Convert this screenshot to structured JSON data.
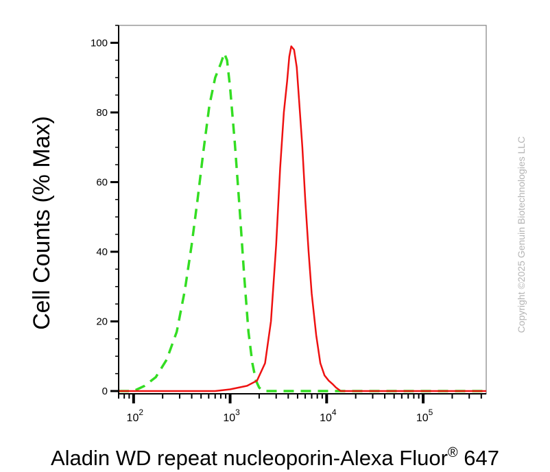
{
  "chart_data": {
    "type": "line",
    "title": "",
    "xlabel": "Aladin WD repeat nucleoporin-Alexa Fluor® 647",
    "xlabel_parts": {
      "main": "Aladin WD repeat nucleoporin-Alexa Fluor",
      "sup": "®",
      "tail": " 647"
    },
    "ylabel": "Cell Counts (% Max)",
    "x_scale": "log",
    "xlim": [
      70,
      450000
    ],
    "ylim": [
      0,
      105
    ],
    "x_ticks": [
      {
        "base": "10",
        "exp": "2",
        "value": 100
      },
      {
        "base": "10",
        "exp": "3",
        "value": 1000
      },
      {
        "base": "10",
        "exp": "4",
        "value": 10000
      },
      {
        "base": "10",
        "exp": "5",
        "value": 100000
      }
    ],
    "y_ticks": [
      {
        "label": "0",
        "value": 0
      },
      {
        "label": "20",
        "value": 20
      },
      {
        "label": "40",
        "value": 40
      },
      {
        "label": "60",
        "value": 60
      },
      {
        "label": "80",
        "value": 80
      },
      {
        "label": "100",
        "value": 100
      }
    ],
    "grid": false,
    "legend": "none",
    "series": [
      {
        "color": "#33dd22",
        "style": "dashed",
        "points": [
          [
            70,
            0
          ],
          [
            100,
            0
          ],
          [
            130,
            1.5
          ],
          [
            170,
            4
          ],
          [
            220,
            9
          ],
          [
            280,
            17
          ],
          [
            340,
            29
          ],
          [
            400,
            42
          ],
          [
            460,
            55
          ],
          [
            530,
            69
          ],
          [
            610,
            82
          ],
          [
            700,
            90
          ],
          [
            800,
            94
          ],
          [
            870,
            97
          ],
          [
            930,
            95
          ],
          [
            1000,
            87
          ],
          [
            1120,
            71
          ],
          [
            1250,
            53
          ],
          [
            1400,
            33
          ],
          [
            1550,
            17
          ],
          [
            1700,
            8
          ],
          [
            1850,
            3
          ],
          [
            2000,
            1
          ],
          [
            2200,
            0
          ],
          [
            450000,
            0
          ]
        ]
      },
      {
        "color": "#ee1111",
        "style": "solid",
        "points": [
          [
            70,
            0
          ],
          [
            700,
            0
          ],
          [
            1000,
            0.5
          ],
          [
            1500,
            1.5
          ],
          [
            1900,
            3
          ],
          [
            2300,
            8
          ],
          [
            2650,
            20
          ],
          [
            3000,
            42
          ],
          [
            3300,
            64
          ],
          [
            3600,
            80
          ],
          [
            3900,
            89
          ],
          [
            4100,
            96
          ],
          [
            4300,
            99
          ],
          [
            4600,
            98
          ],
          [
            4900,
            93
          ],
          [
            5200,
            83
          ],
          [
            5600,
            70
          ],
          [
            6000,
            55
          ],
          [
            6500,
            40
          ],
          [
            7000,
            28
          ],
          [
            7800,
            16
          ],
          [
            8600,
            8
          ],
          [
            9500,
            4.5
          ],
          [
            10500,
            3
          ],
          [
            11500,
            2
          ],
          [
            12500,
            1
          ],
          [
            14000,
            0
          ],
          [
            450000,
            0
          ]
        ]
      }
    ]
  },
  "watermark": {
    "text": "Copyright ©2025 Genuin Biotechnologies LLC"
  }
}
